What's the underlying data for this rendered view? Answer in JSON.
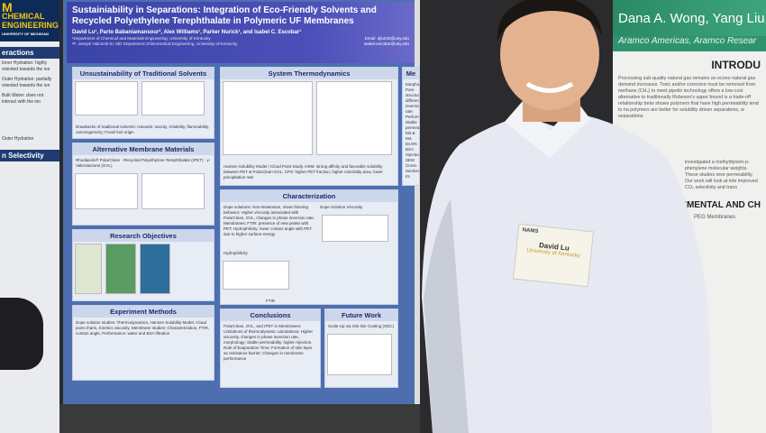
{
  "left_poster": {
    "brand": "M",
    "dept": "CHEMICAL ENGINEERING",
    "univ": "UNIVERSITY OF MICHIGAN",
    "sections": [
      "eractions",
      "n Selectivity"
    ],
    "notes": [
      "Inner Hydration: highly oriented towards the ion",
      "Outer Hydration: partially oriented towards the ion",
      "Bulk Water: does not interact with the ion",
      "Outer Hydration"
    ]
  },
  "main_poster": {
    "title": "Sustainiability in Separations: Integration of Eco-Friendly Solvents and Recycled Polyethylene Terephthalate in Polymeric UF Membranes",
    "authors": "David Lu¹, Parto Babaniamansour², Alex Williams¹, Parker Nurick¹, and Isabel C. Escobar¹",
    "affiliations": [
      "¹Department of Chemical and Materials Engineering, University of Kentucky",
      "²F. Joseph Halcomb III, MD Department of Biomedical Engineering, University of Kentucky"
    ],
    "emails": [
      "Email: djlu225@uky.edu",
      "isabel.escobar@uky.edu"
    ],
    "sections": {
      "s1": {
        "title": "Unsustainability of Traditional Solvents",
        "body": "Drawbacks of traditional solvents: Hazards: toxicity, irritability, flammability, carcinogenicity; Fossil fuel origin"
      },
      "s2": {
        "title": "System Thermodynamics",
        "body": "Hansen Solubility Model / Cloud Point Study. HSM: strong affinity and favorable solubility between PET & PolarClean-GVL; CPS: higher PET fraction, higher miscibility area, lower precipitation rate"
      },
      "s3": {
        "title": "Alternative Membrane Materials",
        "body": "Rhodiasolv® PolarClean · Recycled Polyethylene Terephthalate (rPET) · γ-Valerolactone (GVL)"
      },
      "s4": {
        "title": "Characterization",
        "body": "Dope solutions: Non-Newtonian, shear thinning behavior; Higher viscosity associated with PolarClean, GVL, changes in phase inversion rate. Membranes: FTIR: presence of new peaks with PET; Hydrophilicity: lower contact angle with PET due to higher surface energy",
        "fig_labels": [
          "Dope Solution Viscosity",
          "FTIR",
          "Hydrophilicity"
        ]
      },
      "s5": {
        "title": "Research Objectives"
      },
      "s6": {
        "title": "Experiment Methods",
        "body": "Dope solution studies: Thermodynamics, Hansen Solubility Model, Cloud point charts, Kinetics viscosity. Membrane studies: Characterization, FTIR, contact angle, Performance: water and BSA filtration"
      },
      "s7": {
        "title": "Conclusions",
        "body": "PolarClean, GVL, and rPET in Membranes: Limitations of thermodynamic calculations; Higher viscosity, changes in phase inversion rate, morphology; Stable permeability, higher rejection. Role of Evaporation Time: Formation of skin layer as resistance barrier; Changes in membrane performance"
      },
      "s8": {
        "title": "Future Work",
        "body": "Scale-Up via Slot Die Coating (SDC)"
      },
      "s9": {
        "title": "Me",
        "body": "Morphology: Pore structure differences, inversion rate. Performance: Stable permeability, M3 & M4: 84.9% BSA rejection. SEM Cross-Sectional Im"
      }
    }
  },
  "right_poster": {
    "authors": "Dana A. Wong, Yang Liu, a",
    "affiliation": "Aramco Americas, Aramco Resear",
    "heading1": "INTRODU",
    "intro": "Processing sub-quality natural gas remains an econo natural gas demand increases. Toxic and/or corrosive must be removed from methane (CH₄) to meet pipelin technology offers a low-cost alternative to traditionally Robeson's upper bound is a trade-off relationship betw shows polymers that have high permeability tend to ha polymers are better for solubility driven separations, w separations.",
    "intro2": "investigated a methyldynein-p-phenylene molecular weights. These studies reve permeability. Our work will look at inte improved CO₂ selectivity and trans",
    "heading2": "IMENTAL AND CH",
    "sub2": "PEG Membranes"
  },
  "badge": {
    "org": "NAMS",
    "name": "David Lu",
    "affiliation": "University of Kentucky"
  },
  "colors": {
    "poster_bg": "#4d6fb0",
    "title_band": "#3b44a8",
    "right_band": "#2e9470",
    "shirt": "#e9ecf3",
    "michigan_blue": "#0d2b57",
    "michigan_maize": "#f2c417"
  }
}
